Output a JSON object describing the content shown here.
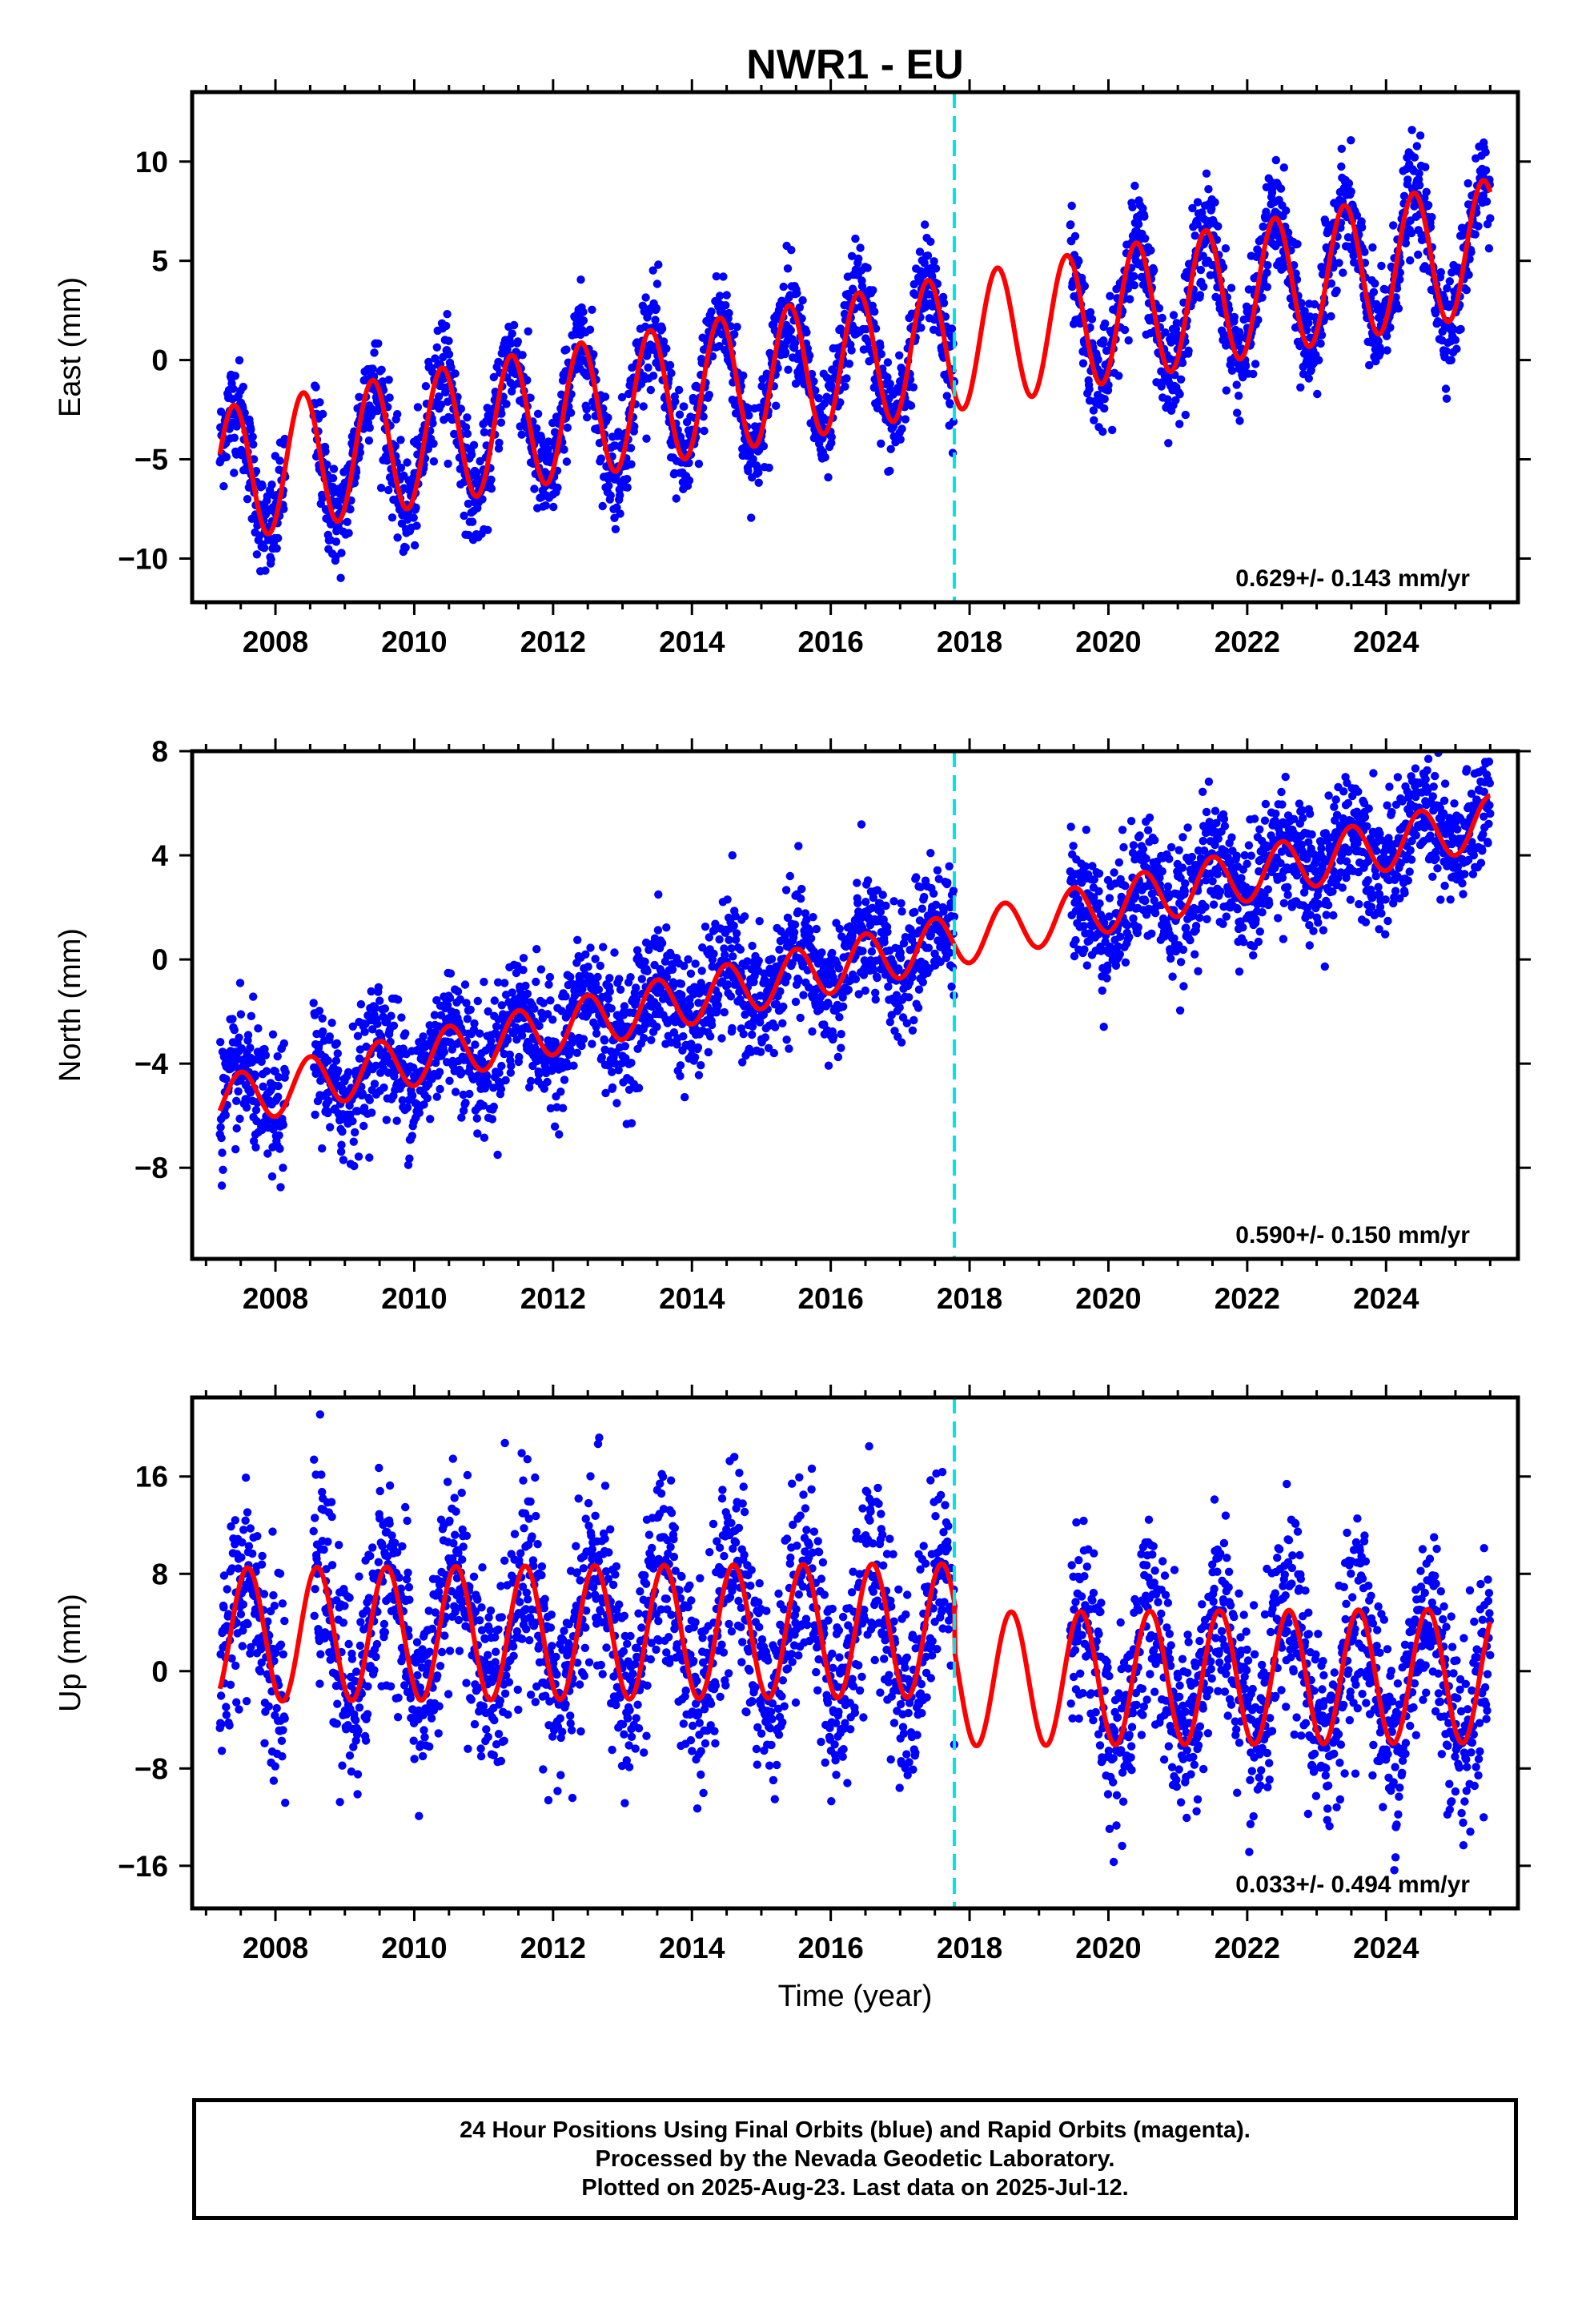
{
  "title": "NWR1 - EU",
  "chart_data": [
    {
      "type": "scatter",
      "panel": "east",
      "ylabel": "East (mm)",
      "xlabel": "",
      "xlim": [
        2006.8,
        2025.9
      ],
      "ylim": [
        -12.2,
        13.5
      ],
      "yticks": [
        -10,
        -5,
        0,
        5,
        10
      ],
      "ytick_labels": [
        "−10",
        "−5",
        "0",
        "5",
        "10"
      ],
      "xticks": [
        2008,
        2010,
        2012,
        2014,
        2016,
        2018,
        2020,
        2022,
        2024
      ],
      "xtick_labels": [
        "2008",
        "2010",
        "2012",
        "2014",
        "2016",
        "2018",
        "2020",
        "2022",
        "2024"
      ],
      "rate_text": "0.629+/- 0.143 mm/yr",
      "equipment_change_year": 2017.78,
      "model": {
        "base_at_start": -5.8,
        "slope": 0.629,
        "amplitude": 3.4,
        "peak_phase": 0.4,
        "start": 2007.2,
        "end": 2025.5
      },
      "observed_segments": [
        [
          2007.2,
          2008.15
        ],
        [
          2008.55,
          2017.78
        ],
        [
          2019.45,
          2025.5
        ]
      ],
      "scatter_sd": 1.3
    },
    {
      "type": "scatter",
      "panel": "north",
      "ylabel": "North (mm)",
      "xlabel": "",
      "xlim": [
        2006.8,
        2025.9
      ],
      "ylim": [
        -11.5,
        8.0
      ],
      "yticks": [
        -8,
        -4,
        0,
        4,
        8
      ],
      "ytick_labels": [
        "−8",
        "−4",
        "0",
        "4",
        "8"
      ],
      "xticks": [
        2008,
        2010,
        2012,
        2014,
        2016,
        2018,
        2020,
        2022,
        2024
      ],
      "xtick_labels": [
        "2008",
        "2010",
        "2012",
        "2014",
        "2016",
        "2018",
        "2020",
        "2022",
        "2024"
      ],
      "rate_text": "0.590+/- 0.150 mm/yr",
      "equipment_change_year": 2017.78,
      "model": {
        "base_at_start": -5.5,
        "slope": 0.59,
        "amplitude": 1.0,
        "peak_phase": 0.5,
        "start": 2007.2,
        "end": 2025.5
      },
      "observed_segments": [
        [
          2007.2,
          2008.15
        ],
        [
          2008.55,
          2017.78
        ],
        [
          2019.45,
          2025.5
        ]
      ],
      "scatter_sd": 1.2
    },
    {
      "type": "scatter",
      "panel": "up",
      "ylabel": "Up (mm)",
      "xlabel": "Time (year)",
      "xlim": [
        2006.8,
        2025.9
      ],
      "ylim": [
        -19.5,
        22.5
      ],
      "yticks": [
        -16,
        -8,
        0,
        8,
        16
      ],
      "ytick_labels": [
        "−16",
        "−8",
        "0",
        "8",
        "16"
      ],
      "xticks": [
        2008,
        2010,
        2012,
        2014,
        2016,
        2018,
        2020,
        2022,
        2024
      ],
      "xtick_labels": [
        "2008",
        "2010",
        "2012",
        "2014",
        "2016",
        "2018",
        "2020",
        "2022",
        "2024"
      ],
      "rate_text": "0.033+/- 0.494 mm/yr",
      "equipment_change_year": 2017.78,
      "model": {
        "base_at_start": 3.0,
        "slope": 0.033,
        "amplitude": 5.5,
        "peak_phase": 0.6,
        "start": 2007.2,
        "end": 2025.5,
        "offset_after_2017.78": -4.0
      },
      "observed_segments": [
        [
          2007.2,
          2008.15
        ],
        [
          2008.55,
          2017.78
        ],
        [
          2019.45,
          2025.5
        ]
      ],
      "scatter_sd": 4.0
    }
  ],
  "colors": {
    "points": "#0000ff",
    "model": "#ff0000",
    "offset_line": "#00e5e5",
    "frame": "#000000"
  },
  "footer": {
    "line1": "24 Hour Positions Using Final Orbits (blue) and Rapid Orbits (magenta).",
    "line2": "Processed by the Nevada Geodetic Laboratory.",
    "line3": "Plotted on 2025-Aug-23. Last data on 2025-Jul-12."
  }
}
